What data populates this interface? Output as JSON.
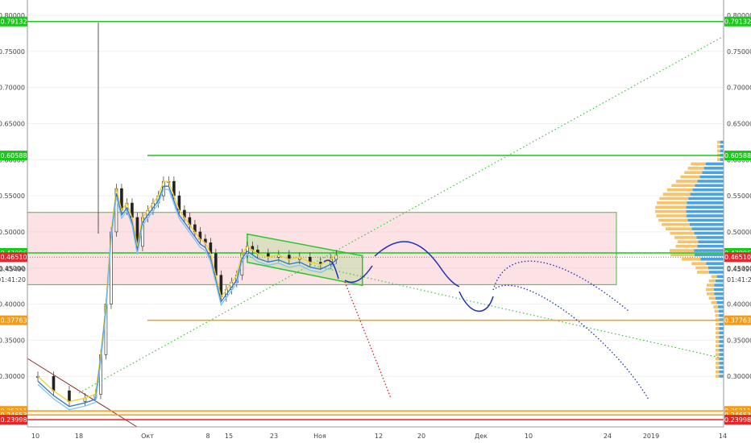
{
  "chart_data": {
    "type": "candlestick",
    "y_axis_ticks": [
      "0.80000",
      "0.75000",
      "0.70000",
      "0.65000",
      "0.60000",
      "0.55000",
      "0.50000",
      "0.45000",
      "0.40000",
      "0.35000",
      "0.30000",
      "0.25000"
    ],
    "x_axis_ticks": [
      "10",
      "18",
      "Окт",
      "8",
      "15",
      "23",
      "Ноя",
      "12",
      "20",
      "Дек",
      "10",
      "24",
      "2019",
      "14"
    ],
    "ylim": [
      0.23,
      0.81
    ],
    "price_levels": [
      {
        "value": 0.79132,
        "label": "0.79132",
        "color": "#19c919"
      },
      {
        "value": 0.60588,
        "label": "0.60588",
        "color": "#19c919"
      },
      {
        "value": 0.47096,
        "label": "0.47096",
        "color": "#19c919"
      },
      {
        "value": 0.37763,
        "label": "0.37763",
        "color": "#f59b1a"
      },
      {
        "value": 0.25211,
        "label": "0.25211",
        "color": "#f59b1a"
      },
      {
        "value": 0.24653,
        "label": "0.24653",
        "color": "#f59b1a"
      },
      {
        "value": 0.23998,
        "label": "0.23998",
        "color": "#ee2222"
      }
    ],
    "current_price": {
      "label": "0.46510",
      "color": "#e8262e"
    },
    "secondary_price_label": "0.45490",
    "countdown": "01:41:20",
    "price_series": [
      [
        "2018-09-06",
        0.3
      ],
      [
        "2018-09-09",
        0.28
      ],
      [
        "2018-09-12",
        0.265
      ],
      [
        "2018-09-15",
        0.27
      ],
      [
        "2018-09-17",
        0.275
      ],
      [
        "2018-09-18",
        0.33
      ],
      [
        "2018-09-19",
        0.4
      ],
      [
        "2018-09-20",
        0.5
      ],
      [
        "2018-09-21",
        0.56
      ],
      [
        "2018-09-22",
        0.53
      ],
      [
        "2018-09-23",
        0.54
      ],
      [
        "2018-09-24",
        0.52
      ],
      [
        "2018-09-25",
        0.48
      ],
      [
        "2018-09-26",
        0.52
      ],
      [
        "2018-09-27",
        0.53
      ],
      [
        "2018-09-28",
        0.54
      ],
      [
        "2018-09-29",
        0.55
      ],
      [
        "2018-09-30",
        0.57
      ],
      [
        "2018-10-01",
        0.57
      ],
      [
        "2018-10-02",
        0.55
      ],
      [
        "2018-10-03",
        0.53
      ],
      [
        "2018-10-04",
        0.52
      ],
      [
        "2018-10-05",
        0.51
      ],
      [
        "2018-10-06",
        0.5
      ],
      [
        "2018-10-07",
        0.49
      ],
      [
        "2018-10-08",
        0.485
      ],
      [
        "2018-10-09",
        0.47
      ],
      [
        "2018-10-10",
        0.44
      ],
      [
        "2018-10-11",
        0.41
      ],
      [
        "2018-10-12",
        0.42
      ],
      [
        "2018-10-13",
        0.43
      ],
      [
        "2018-10-14",
        0.44
      ],
      [
        "2018-10-15",
        0.47
      ],
      [
        "2018-10-16",
        0.48
      ],
      [
        "2018-10-17",
        0.475
      ],
      [
        "2018-10-18",
        0.47
      ],
      [
        "2018-10-20",
        0.465
      ],
      [
        "2018-10-22",
        0.468
      ],
      [
        "2018-10-24",
        0.462
      ],
      [
        "2018-10-26",
        0.465
      ],
      [
        "2018-10-28",
        0.458
      ],
      [
        "2018-10-30",
        0.455
      ],
      [
        "2018-11-01",
        0.462
      ],
      [
        "2018-11-02",
        0.468
      ]
    ],
    "zones": [
      {
        "name": "range-box",
        "from": 0.427,
        "to": 0.527
      },
      {
        "name": "wedge",
        "upper": [
          [
            "2018-10-16",
            0.497
          ],
          [
            "2018-11-07",
            0.467
          ]
        ],
        "lower": [
          [
            "2018-10-16",
            0.458
          ],
          [
            "2018-11-07",
            0.426
          ]
        ]
      }
    ]
  }
}
